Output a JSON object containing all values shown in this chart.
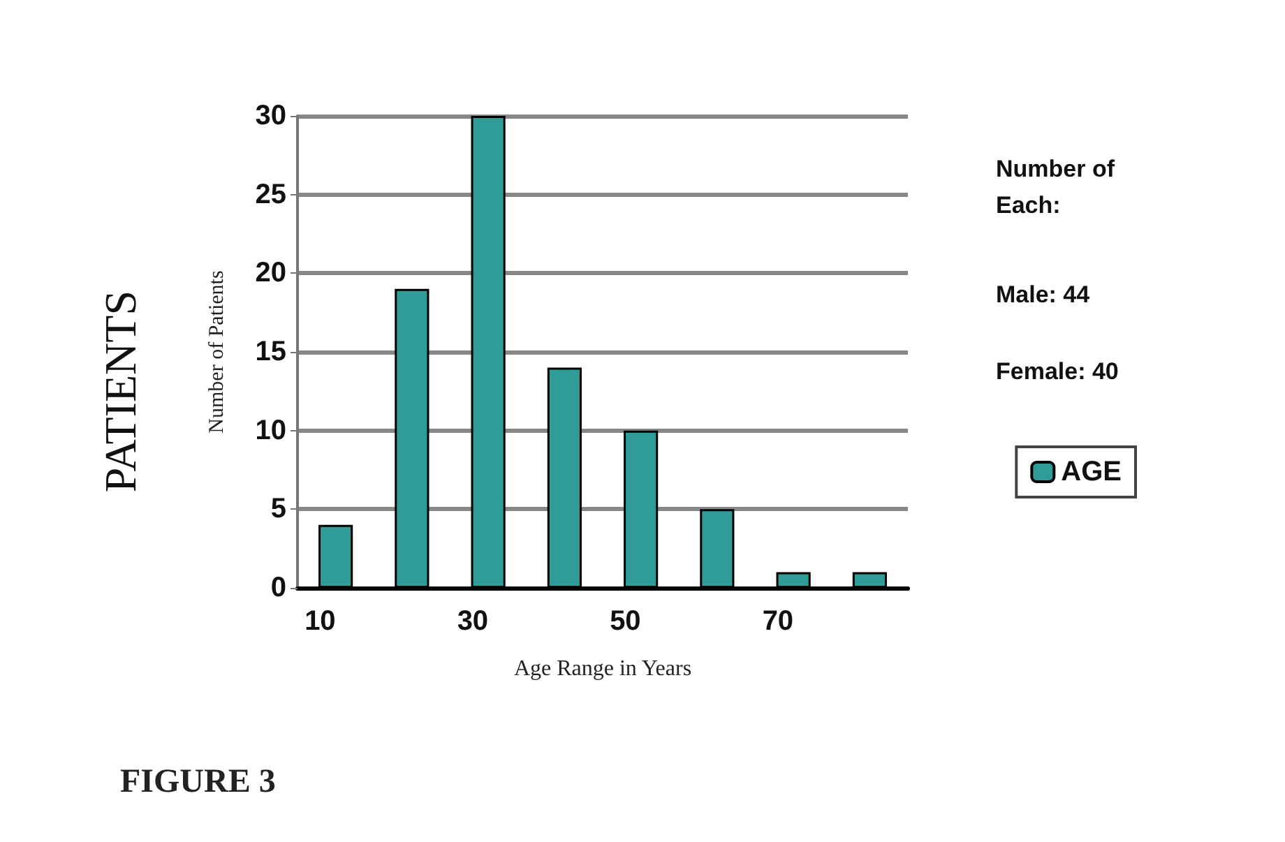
{
  "chart_data": {
    "type": "bar",
    "title": "PATIENTS",
    "ylabel": "Number of Patients",
    "xlabel": "Age Range in Years",
    "categories": [
      "10",
      null,
      "30",
      null,
      "50",
      null,
      "70",
      null
    ],
    "series": [
      {
        "name": "AGE",
        "color": "#2f9c98",
        "values": [
          4,
          19,
          30,
          14,
          10,
          5,
          1,
          1
        ]
      }
    ],
    "ylim": [
      0,
      30
    ],
    "yticks": [
      0,
      5,
      10,
      15,
      20,
      25,
      30
    ],
    "grid": "y",
    "legend": "right",
    "annotations": [
      "Number of Each:",
      "Male: 44",
      "Female: 40",
      "FIGURE 3"
    ]
  }
}
